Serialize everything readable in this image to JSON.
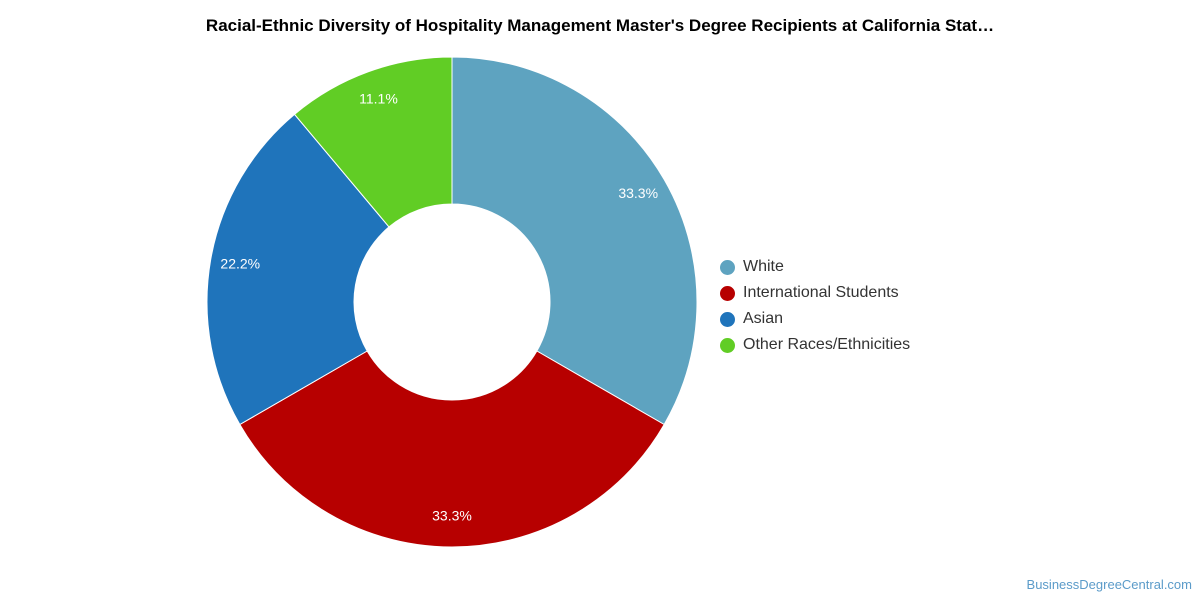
{
  "title": "Racial-Ethnic Diversity of Hospitality Management Master's Degree Recipients at California Stat…",
  "watermark": "BusinessDegreeCentral.com",
  "chart_data": {
    "type": "pie",
    "donut": true,
    "legend_position": "right",
    "slices": [
      {
        "name": "White",
        "value": 33.3,
        "label": "33.3%",
        "color": "#5ea3c0"
      },
      {
        "name": "International Students",
        "value": 33.3,
        "label": "33.3%",
        "color": "#b70000"
      },
      {
        "name": "Asian",
        "value": 22.2,
        "label": "22.2%",
        "color": "#1f74bb"
      },
      {
        "name": "Other Races/Ethnicities",
        "value": 11.1,
        "label": "11.1%",
        "color": "#61cd25"
      }
    ]
  }
}
